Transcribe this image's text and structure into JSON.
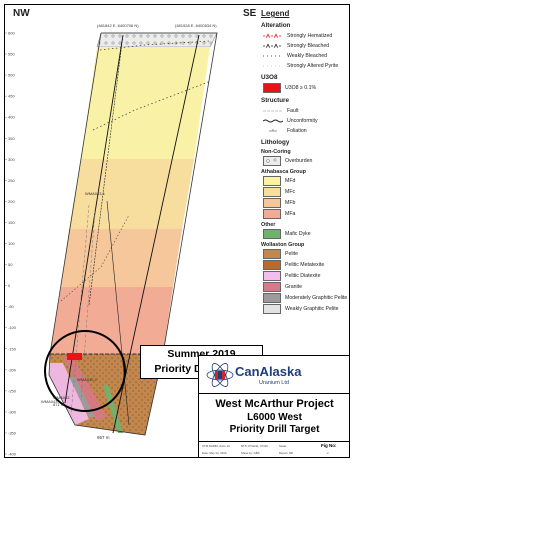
{
  "section": {
    "corner_left": "NW",
    "corner_right": "SE",
    "elevations": [
      "600",
      "550",
      "500",
      "450",
      "400",
      "350",
      "300",
      "250",
      "200",
      "150",
      "100",
      "50",
      "0",
      "-50",
      "-100",
      "-150",
      "-200",
      "-250",
      "-300",
      "-350",
      "-400"
    ],
    "collar_left": "(481842 E, 6400706 N)",
    "collar_right": "(481928 E, 6400534 N)",
    "hole_labels": [
      "WMA043-1",
      "WMA042-1",
      "WMA042",
      "WMA043",
      "871 m",
      "957 m"
    ]
  },
  "legend": {
    "title": "Legend",
    "alteration": {
      "heading": "Alteration",
      "items": [
        "Strongly Hematized",
        "Strongly Bleached",
        "Weakly Bleached",
        "Strongly Altered Pyrite"
      ]
    },
    "u3o8": {
      "heading": "U3O8",
      "item": "U3O8 ≥ 0.1%",
      "color": "#e8121a"
    },
    "structure": {
      "heading": "Structure",
      "items": [
        "Fault",
        "Unconformity",
        "Foliation"
      ]
    },
    "lithology": {
      "heading": "Lithology",
      "non_coring_heading": "Non-Coring",
      "non_coring_item": "Overburden",
      "athabasca_heading": "Athabasca Group",
      "athabasca_items": [
        {
          "label": "MFd",
          "color": "#f9f1a6"
        },
        {
          "label": "MFc",
          "color": "#f7dd9e"
        },
        {
          "label": "MFb",
          "color": "#f5c79a"
        },
        {
          "label": "MFa",
          "color": "#f2ab95"
        }
      ],
      "other_heading": "Other",
      "other_items": [
        {
          "label": "Mafic Dyke",
          "color": "#6db36e"
        }
      ],
      "wollaston_heading": "Wollaston Group",
      "wollaston_items": [
        {
          "label": "Pelite",
          "color": "#c3874e"
        },
        {
          "label": "Pelitic Metatexite",
          "color": "#b96a2d"
        },
        {
          "label": "Pelitic Diatexite",
          "color": "#f3bdf0"
        },
        {
          "label": "Granite",
          "color": "#d9778c"
        },
        {
          "label": "Moderately Graphitic Pelite",
          "color": "#9b9b9b"
        },
        {
          "label": "Weakly Graphitic Pelite",
          "color": "#e3e3e3"
        }
      ]
    }
  },
  "callout": {
    "line1": "Summer 2019",
    "line2": "Priority Drill Target"
  },
  "company": {
    "name": "CanAlaska",
    "subtitle": "Uranium Ltd"
  },
  "title_block": {
    "project": "West McArthur Project",
    "section": "L6000 West",
    "subtitle": "Priority Drill Target"
  },
  "info": {
    "projection": "UTM NAD83, Zone 13",
    "nts": "NTS: 074H/11, 074I/2",
    "scale": "Scale:",
    "fig_label": "Fig No:",
    "date": "Date: May 22, 2019",
    "sheet": "Sheet by: GBS",
    "report": "Report: NR",
    "fig_no": "2"
  }
}
